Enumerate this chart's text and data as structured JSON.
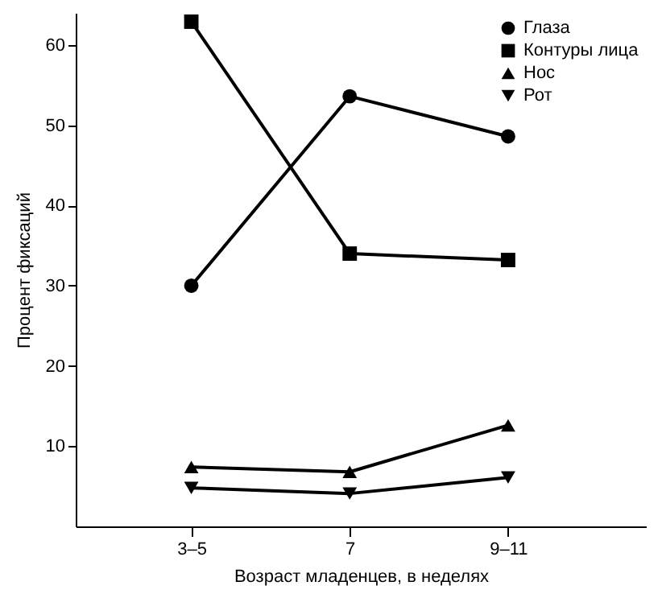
{
  "chart_data": {
    "type": "line",
    "xlabel": "Возраст младенцев, в неделях",
    "ylabel": "Процент фиксаций",
    "categories": [
      "3–5",
      "7",
      "9–11"
    ],
    "series": [
      {
        "name": "Глаза",
        "color": "#000000",
        "marker": "circle",
        "values": [
          30,
          53.6,
          48.6
        ]
      },
      {
        "name": "Контуры лица",
        "color": "#000000",
        "marker": "square",
        "values": [
          62.9,
          34,
          33.2
        ]
      },
      {
        "name": "Нос",
        "color": "#000000",
        "marker": "triangle",
        "values": [
          7.4,
          6.8,
          12.6
        ]
      },
      {
        "name": "Рот",
        "color": "#000000",
        "marker": "triangle-down",
        "values": [
          4.8,
          4.1,
          6.1
        ]
      }
    ],
    "ylim": [
      0,
      64
    ],
    "yticks": [
      10,
      20,
      30,
      40,
      50,
      60
    ],
    "grid": false,
    "legend": "top right",
    "line_style": "solid"
  }
}
